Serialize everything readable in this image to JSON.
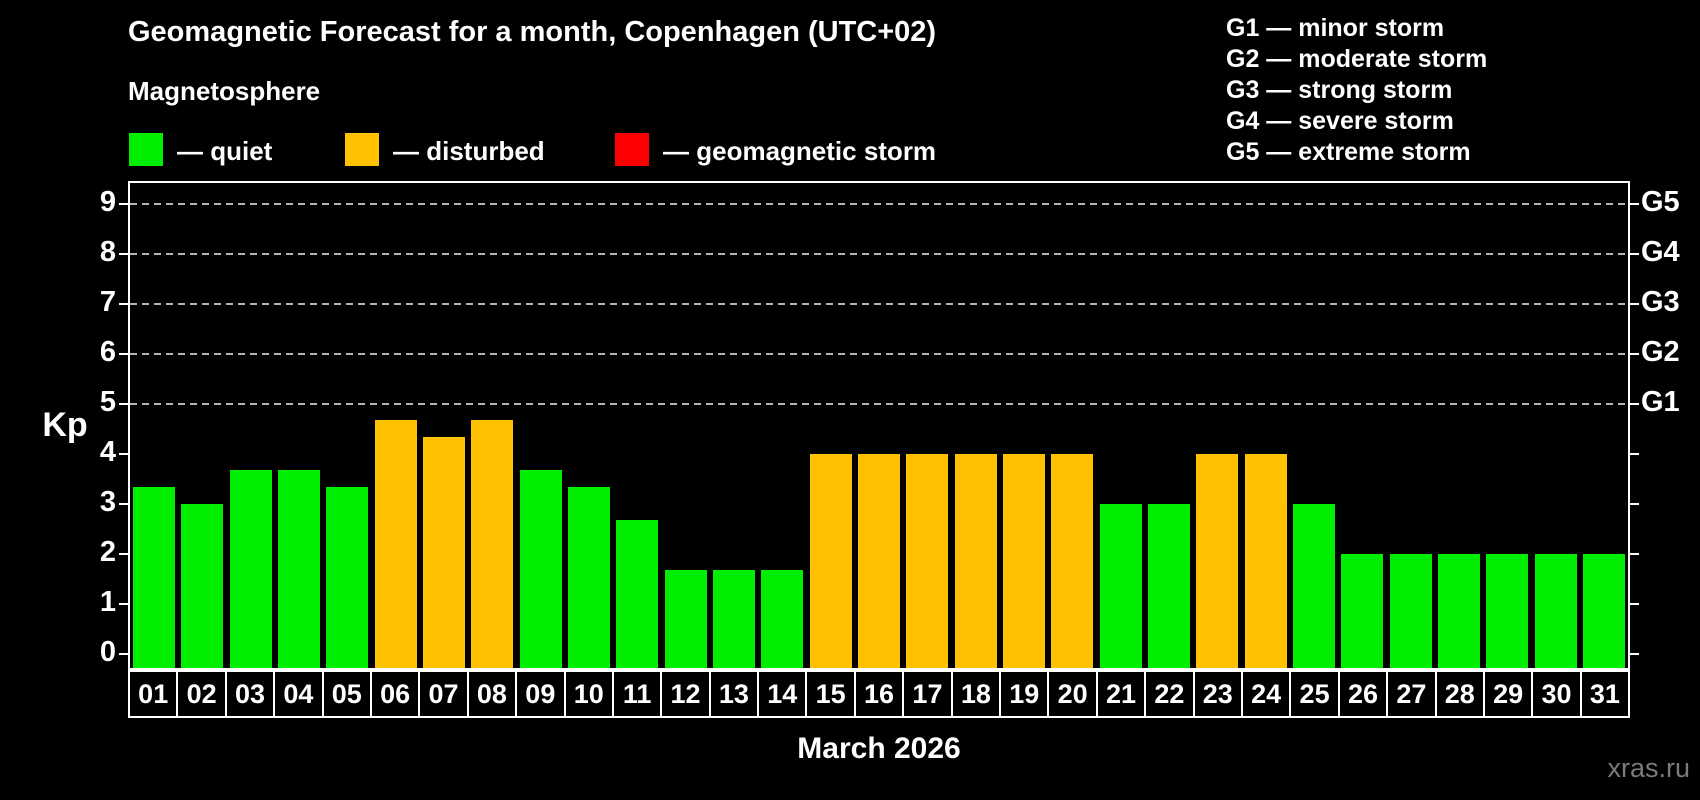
{
  "header": {
    "title": "Geomagnetic Forecast for a month, Copenhagen (UTC+02)",
    "subtitle": "Magnetosphere"
  },
  "legend": {
    "items": [
      {
        "name": "quiet",
        "text": "— quiet",
        "color": "#00ee00"
      },
      {
        "name": "disturbed",
        "text": "— disturbed",
        "color": "#ffc200"
      },
      {
        "name": "geomagnetic-storm",
        "text": "— geomagnetic storm",
        "color": "#ff0000"
      }
    ]
  },
  "g_scale_legend": [
    {
      "text": "G1 — minor storm"
    },
    {
      "text": "G2 — moderate storm"
    },
    {
      "text": "G3 — strong storm"
    },
    {
      "text": "G4 — severe storm"
    },
    {
      "text": "G5 — extreme storm"
    }
  ],
  "axes": {
    "y_label": "Kp",
    "y_ticks": [
      0,
      1,
      2,
      3,
      4,
      5,
      6,
      7,
      8,
      9
    ],
    "g_ticks": [
      {
        "label": "G1",
        "kp": 5
      },
      {
        "label": "G2",
        "kp": 6
      },
      {
        "label": "G3",
        "kp": 7
      },
      {
        "label": "G4",
        "kp": 8
      },
      {
        "label": "G5",
        "kp": 9
      }
    ],
    "x_label": "March 2026"
  },
  "watermark": "xras.ru",
  "colors": {
    "quiet": "#00ee00",
    "disturbed": "#ffc200",
    "storm": "#ff0000",
    "gridline": "#b4b4b4",
    "frame": "#ffffff"
  },
  "chart_data": {
    "type": "bar",
    "title": "Geomagnetic Forecast for a month, Copenhagen (UTC+02)",
    "xlabel": "March 2026",
    "ylabel": "Kp",
    "ylim": [
      -0.29,
      9.41
    ],
    "grid": "dashed horizontal at Kp 5-9 (G1-G5 levels)",
    "legend_position": "top",
    "categories": [
      "01",
      "02",
      "03",
      "04",
      "05",
      "06",
      "07",
      "08",
      "09",
      "10",
      "11",
      "12",
      "13",
      "14",
      "15",
      "16",
      "17",
      "18",
      "19",
      "20",
      "21",
      "22",
      "23",
      "24",
      "25",
      "26",
      "27",
      "28",
      "29",
      "30",
      "31"
    ],
    "values": [
      3.33,
      3.0,
      3.67,
      3.67,
      3.33,
      4.67,
      4.33,
      4.67,
      3.67,
      3.33,
      2.67,
      1.67,
      1.67,
      1.67,
      4.0,
      4.0,
      4.0,
      4.0,
      4.0,
      4.0,
      3.0,
      3.0,
      4.0,
      4.0,
      3.0,
      2.0,
      2.0,
      2.0,
      2.0,
      2.0,
      2.0
    ],
    "statuses": [
      "quiet",
      "quiet",
      "quiet",
      "quiet",
      "quiet",
      "disturbed",
      "disturbed",
      "disturbed",
      "quiet",
      "quiet",
      "quiet",
      "quiet",
      "quiet",
      "quiet",
      "disturbed",
      "disturbed",
      "disturbed",
      "disturbed",
      "disturbed",
      "disturbed",
      "quiet",
      "quiet",
      "disturbed",
      "disturbed",
      "quiet",
      "quiet",
      "quiet",
      "quiet",
      "quiet",
      "quiet",
      "quiet"
    ],
    "gridlines_at": [
      5,
      6,
      7,
      8,
      9
    ]
  }
}
